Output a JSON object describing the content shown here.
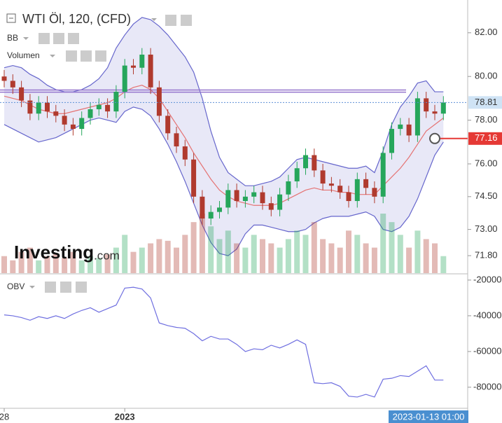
{
  "chart_data": {
    "type": "candlestick",
    "title": "WTI Öl, 120, (CFD)",
    "indicator_labels": [
      "BB",
      "Volumen"
    ],
    "obv_label": "OBV",
    "logo": "Investing",
    "logo_suffix": ".com",
    "cursor_label": "2023-01-13 01:00",
    "categories": [
      "28",
      null,
      null,
      null,
      null,
      null,
      null,
      null,
      null,
      null,
      null,
      null,
      null,
      null,
      "2023",
      null,
      null,
      null,
      null,
      null,
      null,
      null,
      null,
      null,
      null,
      null,
      null,
      null,
      null,
      null,
      null,
      null,
      null,
      null,
      null,
      null,
      null,
      null,
      null,
      null,
      null,
      null,
      null,
      null,
      null,
      null,
      null,
      null,
      null,
      null,
      null,
      null
    ],
    "open": [
      80.0,
      79.8,
      79.5,
      78.9,
      78.3,
      78.8,
      78.4,
      78.2,
      77.8,
      77.6,
      78.1,
      78.5,
      78.7,
      78.4,
      79.3,
      80.5,
      80.4,
      81.0,
      79.5,
      78.2,
      77.4,
      76.8,
      76.2,
      74.5,
      73.5,
      73.8,
      74.0,
      74.8,
      74.3,
      74.5,
      74.7,
      74.2,
      73.9,
      74.6,
      75.2,
      75.8,
      76.4,
      75.7,
      75.1,
      75.0,
      74.7,
      74.3,
      75.3,
      74.9,
      74.5,
      76.5,
      77.6,
      77.8,
      77.3,
      79.0,
      78.4,
      78.3
    ],
    "high": [
      80.3,
      80.1,
      79.8,
      79.2,
      79.1,
      79.1,
      78.7,
      78.5,
      78.1,
      78.4,
      78.8,
      79.0,
      79.0,
      79.6,
      80.8,
      80.8,
      81.3,
      81.3,
      79.8,
      78.5,
      77.7,
      77.1,
      76.5,
      74.8,
      74.1,
      74.3,
      75.1,
      75.1,
      74.8,
      75.0,
      75.0,
      74.5,
      74.9,
      75.5,
      76.1,
      76.7,
      76.7,
      76.0,
      75.4,
      75.3,
      75.0,
      75.6,
      75.6,
      75.2,
      76.8,
      77.9,
      78.1,
      78.1,
      79.3,
      79.3,
      78.7,
      79.1
    ],
    "low": [
      79.5,
      79.2,
      78.6,
      78.0,
      78.0,
      78.1,
      77.9,
      77.5,
      77.3,
      77.3,
      77.8,
      78.2,
      78.1,
      78.1,
      79.0,
      80.1,
      80.1,
      79.2,
      77.9,
      77.1,
      76.5,
      75.9,
      74.2,
      73.2,
      73.2,
      73.5,
      73.7,
      74.0,
      74.0,
      74.2,
      73.9,
      73.6,
      73.6,
      74.3,
      74.9,
      75.5,
      75.4,
      74.8,
      74.7,
      74.4,
      74.0,
      74.0,
      74.6,
      74.2,
      74.2,
      76.2,
      77.3,
      77.0,
      77.0,
      78.1,
      78.0,
      78.0
    ],
    "close": [
      79.8,
      79.5,
      78.9,
      78.3,
      78.8,
      78.4,
      78.2,
      77.8,
      77.6,
      78.1,
      78.5,
      78.7,
      78.4,
      79.3,
      80.5,
      80.4,
      81.0,
      79.5,
      78.2,
      77.4,
      76.8,
      76.2,
      74.5,
      73.5,
      73.8,
      74.0,
      74.8,
      74.3,
      74.5,
      74.7,
      74.2,
      73.9,
      74.6,
      75.2,
      75.8,
      76.4,
      75.7,
      75.1,
      75.0,
      74.7,
      74.3,
      75.3,
      74.9,
      74.5,
      76.5,
      77.6,
      77.8,
      77.3,
      79.0,
      78.4,
      78.3,
      78.81
    ],
    "up_color": "#26a65b",
    "down_color": "#b03a2e",
    "bb_upper": [
      80.4,
      80.5,
      80.4,
      80.1,
      79.9,
      79.6,
      79.4,
      79.3,
      79.3,
      79.4,
      79.6,
      79.9,
      80.4,
      81.3,
      81.9,
      82.4,
      82.7,
      82.6,
      82.3,
      81.9,
      81.4,
      80.9,
      80.2,
      79.0,
      77.5,
      76.3,
      75.6,
      75.3,
      75.0,
      75.0,
      75.1,
      75.2,
      75.4,
      75.8,
      76.2,
      76.3,
      76.2,
      76.1,
      76.0,
      75.9,
      75.8,
      75.8,
      75.9,
      75.6,
      76.6,
      77.8,
      78.6,
      79.1,
      79.7,
      79.8,
      79.3,
      79.3
    ],
    "bb_middle": [
      79.1,
      79.0,
      78.9,
      78.7,
      78.5,
      78.4,
      78.3,
      78.3,
      78.4,
      78.5,
      78.6,
      78.7,
      78.8,
      79.0,
      79.3,
      79.5,
      79.6,
      79.4,
      79.0,
      78.4,
      77.8,
      77.2,
      76.5,
      75.9,
      75.3,
      74.8,
      74.5,
      74.3,
      74.2,
      74.1,
      74.1,
      74.1,
      74.2,
      74.4,
      74.6,
      74.8,
      74.9,
      74.8,
      74.8,
      74.7,
      74.7,
      74.6,
      74.6,
      74.6,
      75.0,
      75.4,
      75.8,
      76.3,
      76.9,
      77.5,
      77.8,
      78.1
    ],
    "bb_lower": [
      77.8,
      77.6,
      77.4,
      77.2,
      77.0,
      77.1,
      77.2,
      77.4,
      77.6,
      77.8,
      78.0,
      78.1,
      78.0,
      77.9,
      78.4,
      78.6,
      78.5,
      78.2,
      77.6,
      76.9,
      76.1,
      75.2,
      74.2,
      73.2,
      72.4,
      71.9,
      71.8,
      72.1,
      72.8,
      73.2,
      73.2,
      73.1,
      73.0,
      72.9,
      72.9,
      73.0,
      73.3,
      73.5,
      73.6,
      73.6,
      73.6,
      73.7,
      73.8,
      73.6,
      73.0,
      72.9,
      73.1,
      73.6,
      74.4,
      75.4,
      76.4,
      77.0
    ],
    "bb_band_color": "#6666cc",
    "bb_middle_color": "#e57373",
    "volume": [
      20,
      15,
      25,
      30,
      15,
      20,
      22,
      18,
      25,
      15,
      20,
      18,
      22,
      30,
      45,
      25,
      30,
      35,
      40,
      38,
      30,
      45,
      60,
      70,
      55,
      40,
      50,
      35,
      30,
      45,
      40,
      35,
      30,
      40,
      50,
      45,
      60,
      40,
      35,
      30,
      50,
      45,
      35,
      30,
      70,
      60,
      45,
      30,
      50,
      40,
      35,
      20
    ],
    "levels": [
      79.38,
      79.28
    ],
    "level_color": "#9575cd",
    "last_price": {
      "value": 78.81,
      "label": "78.81"
    },
    "alert_price": {
      "value": 77.16,
      "label": "77.16"
    },
    "ylim": [
      71.0,
      83.5
    ],
    "yticks": [
      {
        "value": 82,
        "label": "82.00"
      },
      {
        "value": 80,
        "label": "80.00"
      },
      {
        "value": 78,
        "label": "78.00"
      },
      {
        "value": 76,
        "label": "76.00"
      },
      {
        "value": 74.5,
        "label": "74.50"
      },
      {
        "value": 73,
        "label": "73.00"
      },
      {
        "value": 71.8,
        "label": "71.80"
      }
    ],
    "obv": [
      -39500,
      -40000,
      -41000,
      -42500,
      -40500,
      -41500,
      -40000,
      -41500,
      -39000,
      -37000,
      -35500,
      -38000,
      -36000,
      -34000,
      -24500,
      -24000,
      -25000,
      -30000,
      -44000,
      -45500,
      -46500,
      -47000,
      -50000,
      -54000,
      -51500,
      -53000,
      -53000,
      -56000,
      -60000,
      -58500,
      -59000,
      -56500,
      -58000,
      -56000,
      -53500,
      -56000,
      -77500,
      -78000,
      -77500,
      -79500,
      -85000,
      -85500,
      -84000,
      -85500,
      -75500,
      -75000,
      -73500,
      -74000,
      -71000,
      -68000,
      -76000,
      -76000
    ],
    "obv_color": "#6f6fe0",
    "y2lim": [
      -91800,
      -16900
    ],
    "y2ticks": [
      -20000,
      -40000,
      -60000,
      -80000
    ]
  }
}
